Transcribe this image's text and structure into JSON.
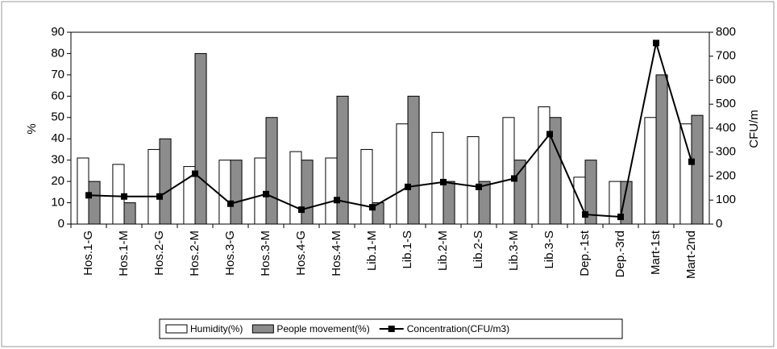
{
  "chart_data": {
    "type": "bar",
    "categories": [
      "Hos.1-G",
      "Hos.1-M",
      "Hos.2-G",
      "Hos.2-M",
      "Hos.3-G",
      "Hos.3-M",
      "Hos.4-G",
      "Hos.4-M",
      "Lib.1-M",
      "Lib.1-S",
      "Lib.2-M",
      "Lib.2-S",
      "Lib.3-M",
      "Lib.3-S",
      "Dep.-1st",
      "Dep.-3rd",
      "Mart-1st",
      "Mart-2nd"
    ],
    "series": [
      {
        "name": "Humidity(%)",
        "type": "bar",
        "color": "#ffffff",
        "values": [
          31,
          28,
          35,
          27,
          30,
          31,
          34,
          31,
          35,
          47,
          43,
          41,
          50,
          55,
          22,
          20,
          50,
          47
        ]
      },
      {
        "name": "People movement(%)",
        "type": "bar",
        "color": "#8c8c8c",
        "values": [
          20,
          10,
          40,
          80,
          30,
          50,
          30,
          60,
          10,
          60,
          20,
          20,
          30,
          50,
          30,
          20,
          70,
          51
        ]
      },
      {
        "name": "Concentration(CFU/m3)",
        "type": "line",
        "axis": "y2",
        "color": "#000000",
        "values": [
          120,
          115,
          115,
          210,
          85,
          125,
          60,
          100,
          70,
          155,
          175,
          155,
          190,
          375,
          40,
          30,
          755,
          260
        ]
      }
    ],
    "ylabel": "%",
    "y2label": "CFU/m",
    "ylim": [
      0,
      90
    ],
    "yticks": [
      0,
      10,
      20,
      30,
      40,
      50,
      60,
      70,
      80,
      90
    ],
    "y2lim": [
      0,
      800
    ],
    "y2ticks": [
      0,
      100,
      200,
      300,
      400,
      500,
      600,
      700,
      800
    ]
  }
}
